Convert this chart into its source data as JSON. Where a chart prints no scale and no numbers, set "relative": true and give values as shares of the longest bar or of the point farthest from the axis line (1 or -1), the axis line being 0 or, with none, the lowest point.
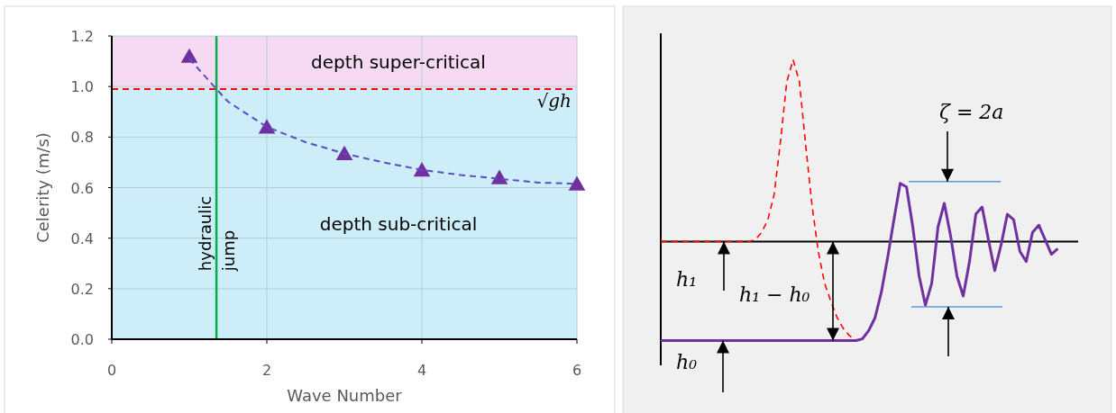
{
  "chart_data": [
    {
      "type": "scatter",
      "xlabel": "Wave Number",
      "ylabel": "Celerity (m/s)",
      "xlim": [
        0,
        6
      ],
      "xticks": [
        0,
        2,
        4,
        6
      ],
      "ylim": [
        0,
        1.2
      ],
      "yticks": [
        {
          "value": 0,
          "label": "0.0"
        },
        {
          "value": 0.2,
          "label": "0.2"
        },
        {
          "value": 0.4,
          "label": "0.4"
        },
        {
          "value": 0.6,
          "label": "0.6"
        },
        {
          "value": 0.8,
          "label": "0.8"
        },
        {
          "value": 1,
          "label": "1.0"
        },
        {
          "value": 1.2,
          "label": "1.2"
        }
      ],
      "grid": true,
      "x": [
        1,
        2,
        3,
        4,
        5,
        6
      ],
      "series": [
        {
          "type": "scatter",
          "color": "#7030a0",
          "marker": "triangle",
          "values": [
            1.12,
            0.84,
            0.735,
            0.67,
            0.64,
            0.615
          ]
        },
        {
          "type": "line",
          "color": "#5b4bc4",
          "line_style": "dashed",
          "x": [
            1,
            1.35,
            1.5,
            2,
            2.5,
            3,
            3.5,
            4,
            4.5,
            5,
            5.5,
            6
          ],
          "values": [
            1.11,
            0.99,
            0.94,
            0.84,
            0.78,
            0.735,
            0.7,
            0.67,
            0.65,
            0.635,
            0.62,
            0.615
          ]
        }
      ],
      "bands": [
        {
          "axis": "y",
          "from": 0.99,
          "to": 1.2,
          "label": "depth super-critical",
          "color": "#f6d9f2"
        },
        {
          "axis": "y",
          "from": 0,
          "to": 0.99,
          "label": "depth sub-critical",
          "color": "#cdeef8"
        }
      ],
      "ref_lines": [
        {
          "axis": "y",
          "value": 0.99,
          "label": "√gh",
          "color": "#ff0000",
          "line_style": "dashed"
        },
        {
          "axis": "x",
          "value": 1.35,
          "label": "hydraulic jump",
          "color": "#00b050"
        }
      ]
    },
    {
      "type": "line",
      "relative": true,
      "categories": [
        null,
        null,
        null,
        null,
        null,
        null,
        null,
        null,
        null,
        null,
        null,
        null,
        null,
        null,
        null,
        null,
        null,
        null,
        null,
        null,
        null,
        null,
        null,
        null,
        null,
        null,
        null,
        null,
        null,
        null,
        null,
        null,
        null,
        null,
        null,
        null,
        null,
        null,
        null,
        null,
        null,
        null,
        null,
        null,
        null,
        null,
        null,
        null,
        null,
        null,
        null,
        null,
        null,
        null,
        null,
        null,
        null,
        null,
        null,
        null,
        null,
        null,
        null,
        null
      ],
      "series": [
        {
          "color": "#ff0000",
          "line_style": "dashed",
          "values": [
            0,
            0,
            0,
            0,
            0,
            0,
            0,
            0,
            0,
            0,
            0,
            0,
            0,
            0,
            0,
            0.01,
            0.05,
            0.12,
            0.26,
            0.55,
            0.88,
            1,
            0.88,
            0.53,
            0.2,
            -0.055,
            -0.23,
            -0.33,
            -0.42,
            -0.48,
            -0.52,
            -0.545,
            null,
            null,
            null,
            null,
            null,
            null,
            null,
            null,
            null,
            null,
            null,
            null,
            null,
            null,
            null,
            null,
            null,
            null,
            null,
            null,
            null,
            null,
            null,
            null,
            null,
            null,
            null,
            null,
            null,
            null,
            null,
            null
          ]
        },
        {
          "color": "#7030a0",
          "line_style": "solid",
          "values": [
            -0.545,
            -0.545,
            -0.545,
            -0.545,
            -0.545,
            -0.545,
            -0.545,
            -0.545,
            -0.545,
            -0.545,
            -0.545,
            -0.545,
            -0.545,
            -0.545,
            -0.545,
            -0.545,
            -0.545,
            -0.545,
            -0.545,
            -0.545,
            -0.545,
            -0.545,
            -0.545,
            -0.545,
            -0.545,
            -0.545,
            -0.545,
            -0.545,
            -0.545,
            -0.545,
            -0.545,
            -0.545,
            -0.536,
            -0.49,
            -0.42,
            -0.28,
            -0.09,
            0.12,
            0.32,
            0.3,
            0.08,
            -0.19,
            -0.35,
            -0.23,
            0.08,
            0.21,
            0.03,
            -0.19,
            -0.3,
            -0.11,
            0.15,
            0.19,
            0.01,
            -0.16,
            -0.02,
            0.15,
            0.12,
            -0.055,
            -0.11,
            0.05,
            0.09,
            0.01,
            -0.07,
            -0.04
          ]
        }
      ],
      "ref_lines": [
        {
          "axis": "y",
          "value": 0.33,
          "color": "#5b9bd5"
        },
        {
          "axis": "y",
          "value": -0.36,
          "color": "#5b9bd5"
        }
      ],
      "annotations": [
        "h₁",
        "h₁ − h₀",
        "h₀",
        "ζ = 2a"
      ]
    }
  ]
}
